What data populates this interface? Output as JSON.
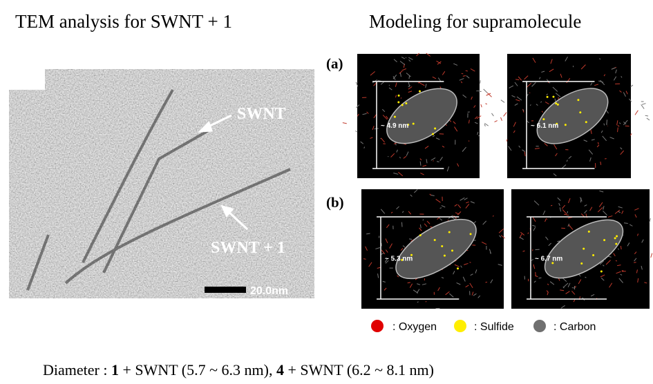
{
  "header": {
    "left_title": "TEM analysis  for SWNT + 1",
    "right_title": "Modeling for supramolecule"
  },
  "tem": {
    "arrow_labels": [
      "SWNT",
      "SWNT + 1"
    ],
    "scale_bar": "20.0nm"
  },
  "modeling": {
    "panels": [
      {
        "label": "(a)",
        "widths": [
          "~ 4.9 nm",
          "~ 6.1 nm"
        ]
      },
      {
        "label": "(b)",
        "widths": [
          "~ 5.3 nm",
          "~ 6.7 nm"
        ]
      }
    ],
    "legend": [
      ": Oxygen",
      ": Sulfide",
      ": Carbon"
    ]
  },
  "caption": {
    "parts": [
      "Diameter : ",
      "1",
      " + SWNT (5.7 ~ 6.3 nm), ",
      "4",
      " + SWNT (6.2 ~ 8.1 nm)"
    ]
  }
}
